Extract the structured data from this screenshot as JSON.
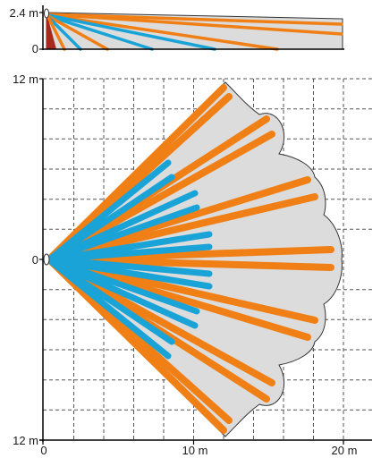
{
  "side_view": {
    "height_label": "2.4 m",
    "floor_label": "0"
  },
  "top_view": {
    "top_label": "12 m",
    "center_label": "0",
    "bottom_label": "12 m",
    "x_labels": [
      "0",
      "10 m",
      "20 m"
    ]
  },
  "colors": {
    "zone_fill": "#dcdcdc",
    "long_beam": "#f07f15",
    "short_beam": "#1aa3d6",
    "sensor_dark": "#a8281c",
    "grid_line": "#555555",
    "axis": "#000000"
  }
}
